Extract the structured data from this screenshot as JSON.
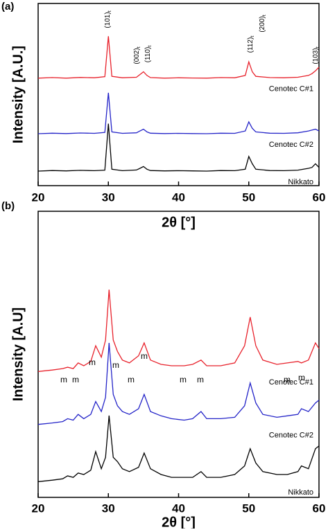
{
  "chart_data": [
    {
      "type": "line",
      "panel_label": "(a)",
      "x_label": "2θ [°]",
      "y_label": "Intensity [A.U.]",
      "xlim": [
        20,
        60
      ],
      "ylim": [
        0,
        100
      ],
      "xticks": [
        20,
        30,
        40,
        50,
        60
      ],
      "grid": false,
      "annotations": [
        {
          "text": "(101)",
          "sub": "t"
        },
        {
          "text": "(002)",
          "sub": "t"
        },
        {
          "text": "(110)",
          "sub": "t"
        },
        {
          "text": "(112)",
          "sub": "t"
        },
        {
          "text": "(200)",
          "sub": "t"
        },
        {
          "text": "(103)",
          "sub": "t"
        }
      ],
      "x": [
        20,
        22,
        24,
        26,
        28,
        29.5,
        30,
        30.5,
        32,
        34,
        34.5,
        35,
        35.5,
        36,
        38,
        40,
        42,
        44,
        46,
        48,
        49.5,
        50,
        50.5,
        51,
        53,
        55,
        57,
        58.5,
        59,
        59.5,
        60
      ],
      "series": [
        {
          "name": "Cenotec C#1",
          "color": "#e8202a",
          "values": [
            59,
            59.3,
            59,
            59.4,
            59.2,
            59.8,
            82,
            60,
            59.2,
            59.5,
            61,
            62.5,
            60.5,
            59.3,
            59,
            59.2,
            59.1,
            59,
            59.3,
            59.2,
            60.5,
            68,
            62.5,
            60,
            59.3,
            59.2,
            59.5,
            60.5,
            61.5,
            63,
            65
          ]
        },
        {
          "name": "Cenotec C#2",
          "color": "#2323c8",
          "values": [
            28.5,
            28.8,
            28.6,
            28.9,
            28.7,
            29.2,
            51,
            29.5,
            28.7,
            29,
            30,
            31,
            29.5,
            28.8,
            28.6,
            28.7,
            28.6,
            28.5,
            28.8,
            28.7,
            30,
            35,
            31.5,
            29.5,
            28.8,
            28.7,
            29,
            30,
            30.5,
            31,
            30
          ]
        },
        {
          "name": "Nikkato",
          "color": "#000000",
          "values": [
            8,
            8.3,
            8.1,
            8.4,
            8.2,
            8.5,
            34,
            9,
            8.2,
            8.6,
            9.5,
            10.5,
            9,
            8.3,
            8.1,
            8.2,
            8.1,
            8,
            8.3,
            8.2,
            9,
            16,
            12,
            9,
            8.3,
            8.2,
            8.5,
            9.5,
            10,
            12,
            10
          ]
        }
      ]
    },
    {
      "type": "line",
      "panel_label": "(b)",
      "x_label": "2θ [°]",
      "y_label": "Intensity [A.U]",
      "xlim": [
        20,
        60
      ],
      "ylim": [
        0,
        100
      ],
      "xticks": [
        20,
        30,
        40,
        50,
        60
      ],
      "grid": false,
      "annotations": [
        "m",
        "m",
        "m",
        "m",
        "m",
        "m",
        "m",
        "m",
        "m",
        "m"
      ],
      "x": [
        20,
        22,
        23.5,
        24.2,
        25,
        25.7,
        26.5,
        27.5,
        28.2,
        29,
        29.6,
        30.1,
        30.7,
        31.3,
        32,
        33,
        34.3,
        35.1,
        36,
        37.5,
        39,
        40.8,
        42,
        43.2,
        44,
        46,
        48,
        49.4,
        50.2,
        51,
        52,
        54,
        55.5,
        57,
        57.5,
        58.5,
        59.5,
        60
      ],
      "series": [
        {
          "name": "Cenotec C#1",
          "color": "#e8202a",
          "values": [
            44,
            44.5,
            45,
            45.5,
            45,
            47,
            46,
            47.5,
            53,
            49,
            55,
            72.6,
            55,
            51,
            48,
            47,
            49.5,
            54,
            48,
            46.5,
            46,
            46,
            46.5,
            48,
            46,
            46,
            47,
            53,
            63,
            53,
            48,
            46.5,
            47,
            47.5,
            47,
            48,
            54,
            52
          ]
        },
        {
          "name": "Cenotec C#2",
          "color": "#2323c8",
          "values": [
            25.5,
            26,
            26.5,
            27.5,
            27,
            29,
            27.5,
            29,
            33.5,
            30,
            35,
            54,
            36,
            32,
            30,
            29,
            31,
            36,
            30,
            28.5,
            27.5,
            27,
            27.5,
            30,
            27.5,
            27.5,
            28,
            32,
            40,
            33,
            29,
            28,
            28.5,
            29,
            31,
            30,
            33,
            34
          ]
        },
        {
          "name": "Nikkato",
          "color": "#000000",
          "values": [
            5.5,
            6,
            6.5,
            7.5,
            7,
            8.5,
            8,
            9.5,
            16,
            10,
            14,
            28.6,
            14,
            12.5,
            10,
            9,
            10.5,
            15.5,
            10,
            8,
            7,
            7,
            7,
            9,
            7,
            7,
            8,
            11,
            17,
            12,
            9,
            8,
            8,
            9,
            11,
            10,
            17,
            18
          ]
        }
      ]
    }
  ]
}
